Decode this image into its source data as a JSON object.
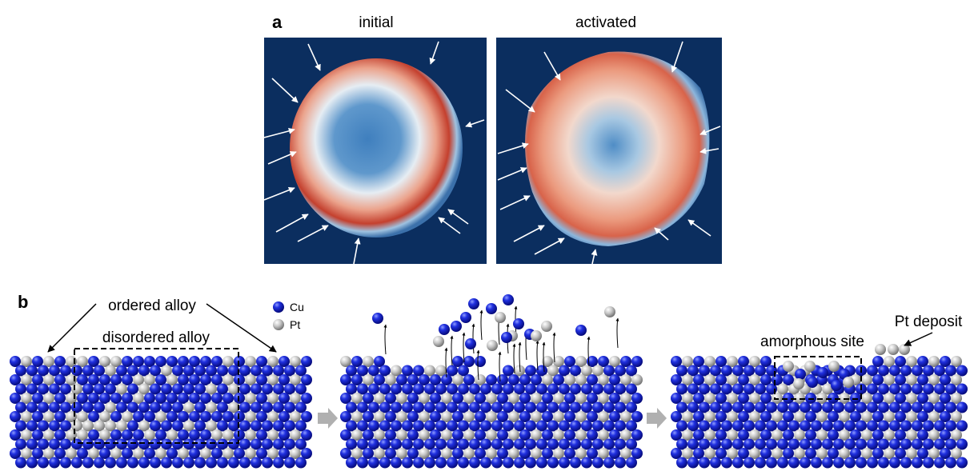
{
  "panel_a": {
    "label": "a",
    "images": [
      {
        "caption": "initial"
      },
      {
        "caption": "activated"
      }
    ]
  },
  "panel_b": {
    "label": "b",
    "ordered": "ordered alloy",
    "disordered": "disordered alloy",
    "legend": [
      {
        "name": "Cu"
      },
      {
        "name": "Pt"
      }
    ],
    "amorphous": "amorphous site",
    "deposit": "Pt deposit"
  }
}
